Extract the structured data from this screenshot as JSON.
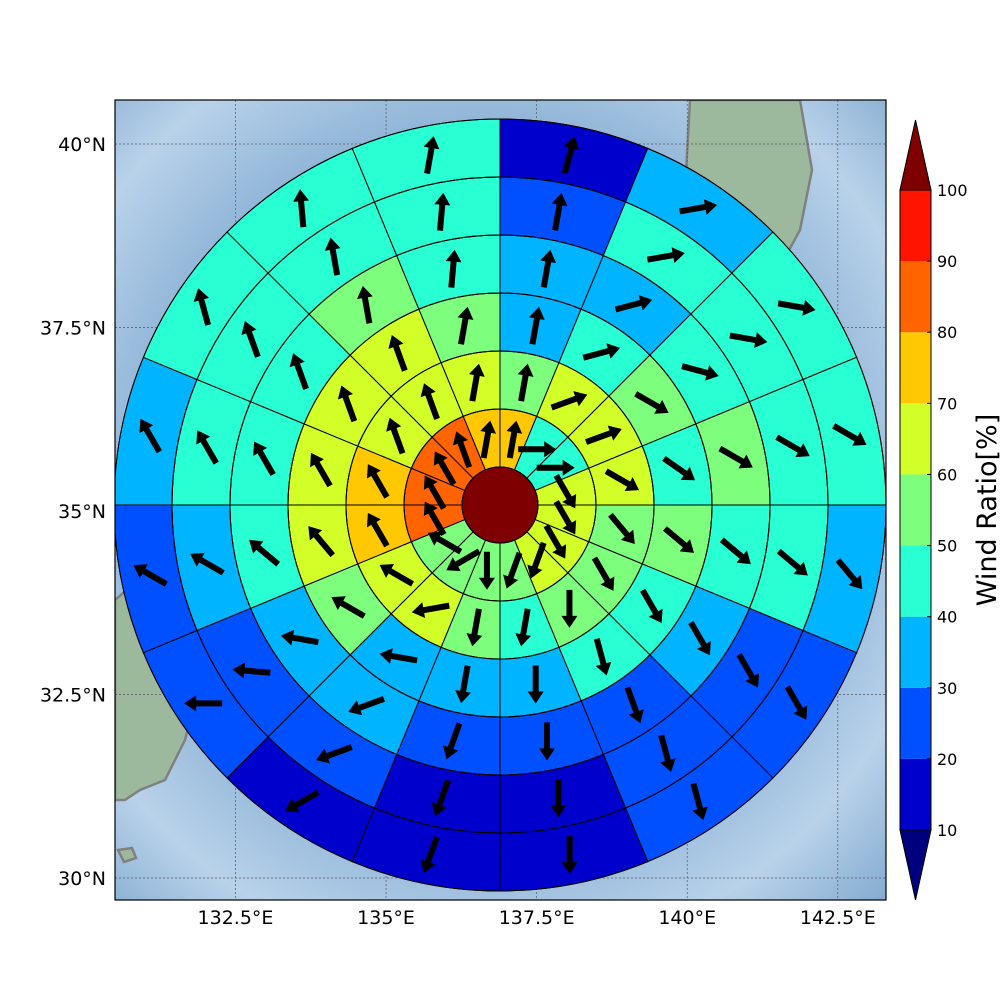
{
  "map": {
    "lon_range": [
      130.5,
      143.3
    ],
    "lat_range": [
      29.7,
      40.6
    ],
    "lon_ticks": [
      {
        "value": 132.5,
        "label": "132.5°E"
      },
      {
        "value": 135.0,
        "label": "135°E"
      },
      {
        "value": 137.5,
        "label": "137.5°E"
      },
      {
        "value": 140.0,
        "label": "140°E"
      },
      {
        "value": 142.5,
        "label": "142.5°E"
      }
    ],
    "lat_ticks": [
      {
        "value": 30.0,
        "label": "30°N"
      },
      {
        "value": 32.5,
        "label": "32.5°N"
      },
      {
        "value": 35.0,
        "label": "35°N"
      },
      {
        "value": 37.5,
        "label": "37.5°N"
      },
      {
        "value": 40.0,
        "label": "40°N"
      }
    ],
    "grid": true,
    "center": {
      "lon": 136.8,
      "lat": 35.0,
      "value": 100
    },
    "ring_count": 6,
    "sector_count": 16,
    "sector_start_bearing_deg": 0,
    "colors": {
      "ocean_dark": "#7fa7cc",
      "ocean_light": "#c9ddef",
      "land": "#9ab89c",
      "coast": "#808080",
      "cell_edge": "#000000",
      "arrow": "#000000"
    }
  },
  "chart_data": {
    "type": "heatmap",
    "description_ring_order": "inner to outer; sectors clockwise from north",
    "rings": [
      {
        "ring": 1,
        "values": [
          70,
          45,
          45,
          60,
          60,
          60,
          60,
          50,
          50,
          50,
          50,
          80,
          80,
          80,
          80,
          70
        ],
        "wind_dir_deg": [
          10,
          90,
          90,
          150,
          150,
          150,
          200,
          200,
          180,
          240,
          300,
          330,
          330,
          330,
          340,
          10
        ]
      },
      {
        "ring": 2,
        "values": [
          55,
          60,
          60,
          60,
          55,
          55,
          55,
          45,
          50,
          60,
          65,
          70,
          70,
          60,
          60,
          60
        ],
        "wind_dir_deg": [
          10,
          70,
          70,
          120,
          140,
          150,
          180,
          190,
          190,
          260,
          300,
          330,
          330,
          340,
          340,
          10
        ]
      },
      {
        "ring": 3,
        "values": [
          35,
          45,
          50,
          45,
          50,
          45,
          40,
          35,
          35,
          35,
          50,
          60,
          60,
          60,
          60,
          55
        ],
        "wind_dir_deg": [
          10,
          75,
          120,
          125,
          130,
          150,
          165,
          180,
          190,
          280,
          300,
          320,
          330,
          340,
          340,
          10
        ]
      },
      {
        "ring": 4,
        "values": [
          35,
          30,
          45,
          50,
          45,
          35,
          25,
          25,
          25,
          30,
          35,
          40,
          45,
          45,
          55,
          45
        ],
        "wind_dir_deg": [
          10,
          75,
          105,
          120,
          130,
          150,
          160,
          180,
          200,
          250,
          280,
          310,
          330,
          340,
          350,
          5
        ]
      },
      {
        "ring": 5,
        "values": [
          25,
          45,
          45,
          45,
          40,
          25,
          25,
          15,
          15,
          20,
          20,
          30,
          40,
          40,
          40,
          40
        ],
        "wind_dir_deg": [
          10,
          80,
          100,
          120,
          130,
          150,
          165,
          180,
          200,
          250,
          275,
          300,
          330,
          340,
          350,
          5
        ]
      },
      {
        "ring": 6,
        "values": [
          15,
          35,
          45,
          45,
          30,
          25,
          20,
          15,
          15,
          15,
          20,
          25,
          35,
          40,
          40,
          45
        ],
        "wind_dir_deg": [
          15,
          80,
          100,
          120,
          140,
          150,
          165,
          180,
          200,
          240,
          270,
          300,
          330,
          345,
          355,
          10
        ]
      }
    ]
  },
  "colorbar": {
    "title": "Wind Ratio[%]",
    "levels": [
      10,
      20,
      30,
      40,
      50,
      60,
      70,
      80,
      90,
      100
    ],
    "tick_labels": [
      "10",
      "20",
      "30",
      "40",
      "50",
      "60",
      "70",
      "80",
      "90",
      "100"
    ],
    "colors": [
      "#0000cd",
      "#0050ff",
      "#00b4ff",
      "#28ffd2",
      "#7dff7d",
      "#d2ff28",
      "#ffc800",
      "#ff6400",
      "#ff1400"
    ],
    "under_color": "#00007f",
    "over_color": "#7f0000",
    "extend": "both"
  }
}
